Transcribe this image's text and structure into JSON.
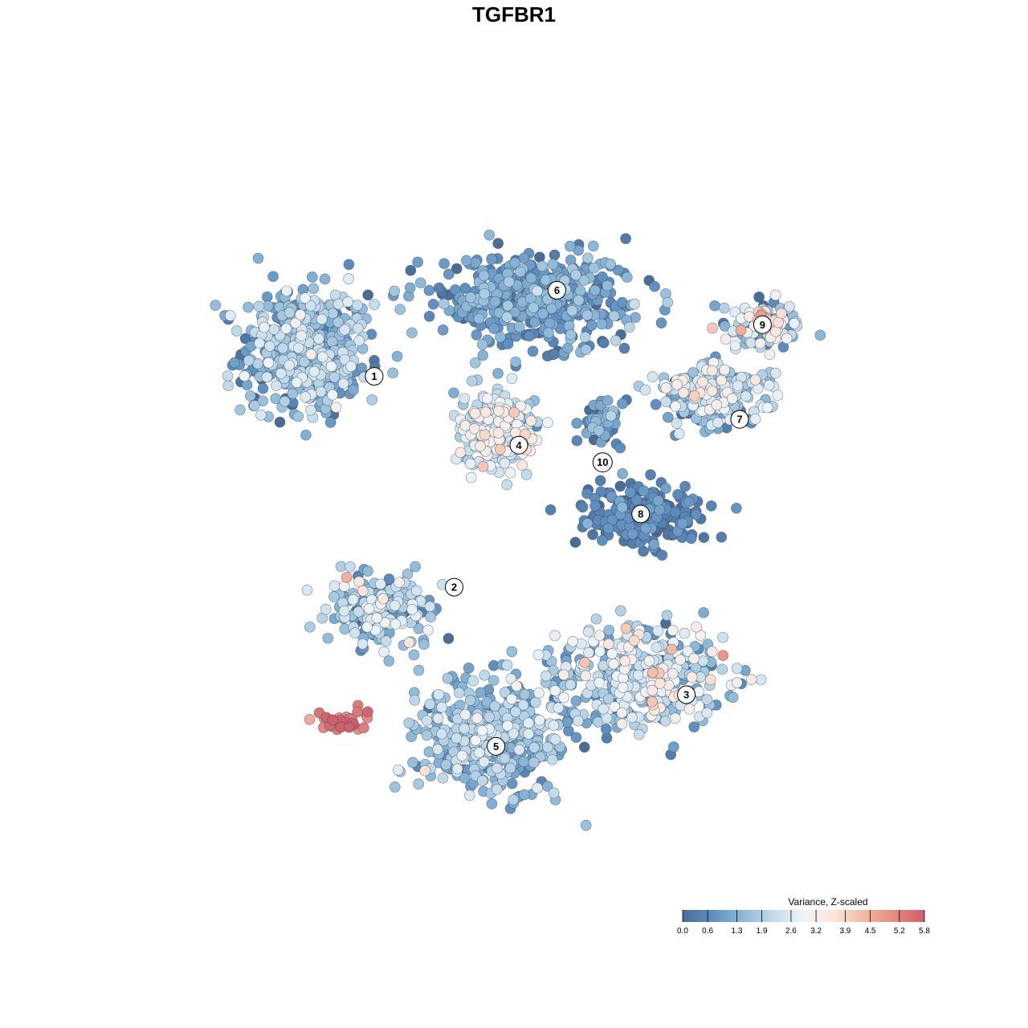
{
  "chart_data": {
    "type": "scatter",
    "title": "TGFBR1",
    "xlabel": "",
    "ylabel": "",
    "grid": false,
    "axes_visible": false,
    "color_scale": {
      "title": "Variance, Z-scaled",
      "min": 0.0,
      "max": 5.8,
      "ticks": [
        "0.0",
        "0.6",
        "1.3",
        "1.9",
        "2.6",
        "3.2",
        "3.9",
        "4.5",
        "5.2",
        "5.8"
      ],
      "tick_values": [
        0.0,
        0.6,
        1.3,
        1.9,
        2.6,
        3.2,
        3.9,
        4.5,
        5.2,
        5.8
      ],
      "colors": [
        "#4a6d96",
        "#5f8fc0",
        "#8bb8d8",
        "#c3dbea",
        "#eef4f8",
        "#fbe5da",
        "#f3b8a2",
        "#e58a7e",
        "#cc5f6c"
      ],
      "legend_position": "bottom-right"
    },
    "x_range": [
      -48,
      48
    ],
    "y_range": [
      -42,
      42
    ],
    "clusters": [
      {
        "label": "1",
        "x": -30,
        "y": 19,
        "sx": 7.5,
        "sy": 6.5,
        "n": 520,
        "mean": 1.4,
        "sd": 0.7
      },
      {
        "label": "2",
        "x": -20,
        "y": -11,
        "sx": 7,
        "sy": 4,
        "n": 200,
        "mean": 1.7,
        "sd": 0.8
      },
      {
        "label": "3",
        "x": 14,
        "y": -19,
        "sx": 10,
        "sy": 5.5,
        "n": 420,
        "mean": 2.0,
        "sd": 0.9
      },
      {
        "label": "4",
        "x": -5,
        "y": 10,
        "sx": 5,
        "sy": 4,
        "n": 260,
        "mean": 2.4,
        "sd": 0.6
      },
      {
        "label": "5",
        "x": -5,
        "y": -26,
        "sx": 9,
        "sy": 6,
        "n": 480,
        "mean": 1.5,
        "sd": 0.6
      },
      {
        "label": "6",
        "x": 0,
        "y": 25,
        "sx": 12,
        "sy": 4.5,
        "n": 460,
        "mean": 0.9,
        "sd": 0.5
      },
      {
        "label": "7",
        "x": 24,
        "y": 14,
        "sx": 7,
        "sy": 3.2,
        "n": 230,
        "mean": 1.8,
        "sd": 0.8
      },
      {
        "label": "8",
        "x": 14,
        "y": 0,
        "sx": 7,
        "sy": 3.5,
        "n": 210,
        "mean": 0.4,
        "sd": 0.35
      },
      {
        "label": "9",
        "x": 30,
        "y": 22,
        "sx": 4.5,
        "sy": 2.5,
        "n": 120,
        "mean": 2.2,
        "sd": 1.0
      },
      {
        "label": "10",
        "x": 9,
        "y": 11,
        "sx": 2.2,
        "sy": 2.2,
        "n": 60,
        "mean": 0.8,
        "sd": 0.6
      },
      {
        "label": "",
        "x": -25,
        "y": -24,
        "sx": 3,
        "sy": 1.5,
        "n": 30,
        "mean": 5.4,
        "sd": 0.3
      }
    ],
    "label_positions": [
      {
        "label": "1",
        "x": -21,
        "y": 16
      },
      {
        "label": "2",
        "x": -10.5,
        "y": -8.5
      },
      {
        "label": "3",
        "x": 20,
        "y": -21
      },
      {
        "label": "4",
        "x": -2,
        "y": 8
      },
      {
        "label": "5",
        "x": -5,
        "y": -27
      },
      {
        "label": "6",
        "x": 3,
        "y": 26
      },
      {
        "label": "7",
        "x": 27,
        "y": 11
      },
      {
        "label": "8",
        "x": 14,
        "y": 0
      },
      {
        "label": "9",
        "x": 30,
        "y": 22
      },
      {
        "label": "10",
        "x": 9,
        "y": 6
      }
    ]
  }
}
